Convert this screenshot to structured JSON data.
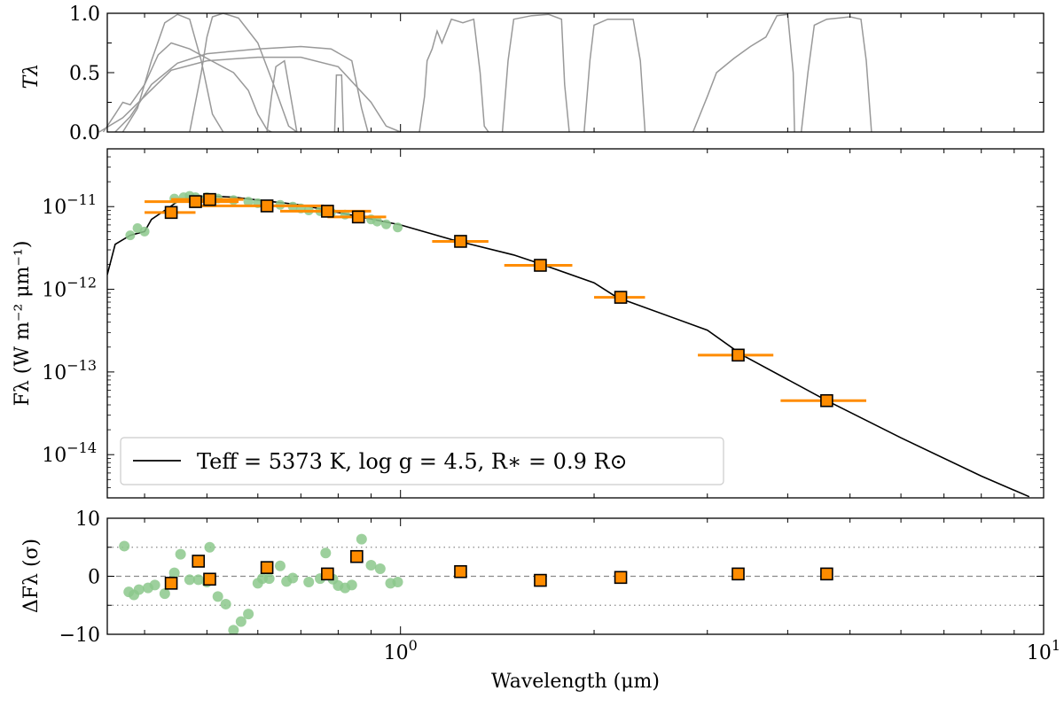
{
  "chart_data": [
    {
      "type": "line",
      "panel": "transmission",
      "ylabel": "Tλ",
      "ylim": [
        0,
        1.0
      ],
      "xscale": "log",
      "xlim": [
        0.35,
        10
      ],
      "yticks": [
        {
          "v": 0.0,
          "label": "0.0"
        },
        {
          "v": 0.5,
          "label": "0.5"
        },
        {
          "v": 1.0,
          "label": "1.0"
        }
      ],
      "color": "#999999",
      "series": [
        {
          "name": "band-1",
          "points": [
            [
              0.345,
              0
            ],
            [
              0.36,
              0.15
            ],
            [
              0.37,
              0.25
            ],
            [
              0.38,
              0.23
            ],
            [
              0.4,
              0.4
            ],
            [
              0.42,
              0.65
            ],
            [
              0.44,
              0.75
            ],
            [
              0.47,
              0.7
            ],
            [
              0.5,
              0.62
            ],
            [
              0.55,
              0.5
            ],
            [
              0.58,
              0.35
            ],
            [
              0.6,
              0.15
            ],
            [
              0.62,
              0.02
            ],
            [
              0.63,
              0
            ]
          ]
        },
        {
          "name": "band-2",
          "points": [
            [
              0.37,
              0
            ],
            [
              0.39,
              0.2
            ],
            [
              0.41,
              0.6
            ],
            [
              0.43,
              0.92
            ],
            [
              0.45,
              0.99
            ],
            [
              0.47,
              0.95
            ],
            [
              0.49,
              0.6
            ],
            [
              0.51,
              0.15
            ],
            [
              0.53,
              0
            ]
          ]
        },
        {
          "name": "band-3",
          "points": [
            [
              0.34,
              0
            ],
            [
              0.37,
              0.12
            ],
            [
              0.4,
              0.3
            ],
            [
              0.44,
              0.52
            ],
            [
              0.5,
              0.6
            ],
            [
              0.6,
              0.63
            ],
            [
              0.7,
              0.63
            ],
            [
              0.8,
              0.55
            ],
            [
              0.9,
              0.25
            ],
            [
              0.95,
              0.05
            ],
            [
              1.0,
              0
            ]
          ]
        },
        {
          "name": "band-4",
          "points": [
            [
              0.36,
              0
            ],
            [
              0.38,
              0.13
            ],
            [
              0.41,
              0.4
            ],
            [
              0.45,
              0.58
            ],
            [
              0.5,
              0.66
            ],
            [
              0.6,
              0.7
            ],
            [
              0.7,
              0.72
            ],
            [
              0.78,
              0.7
            ],
            [
              0.84,
              0.6
            ],
            [
              0.87,
              0.2
            ],
            [
              0.89,
              0
            ]
          ]
        },
        {
          "name": "band-5",
          "points": [
            [
              0.47,
              0
            ],
            [
              0.49,
              0.5
            ],
            [
              0.5,
              0.8
            ],
            [
              0.51,
              0.97
            ],
            [
              0.53,
              1.0
            ],
            [
              0.56,
              0.96
            ],
            [
              0.6,
              0.75
            ],
            [
              0.64,
              0.35
            ],
            [
              0.67,
              0.05
            ],
            [
              0.69,
              0
            ]
          ]
        },
        {
          "name": "band-6",
          "points": [
            [
              0.62,
              0
            ],
            [
              0.63,
              0.3
            ],
            [
              0.64,
              0.55
            ],
            [
              0.66,
              0.6
            ],
            [
              0.68,
              0.2
            ],
            [
              0.69,
              0
            ]
          ]
        },
        {
          "name": "band-7",
          "points": [
            [
              0.79,
              0
            ],
            [
              0.795,
              0.48
            ],
            [
              0.81,
              0.48
            ],
            [
              0.815,
              0
            ]
          ]
        },
        {
          "name": "band-8",
          "points": [
            [
              1.07,
              0
            ],
            [
              1.09,
              0.3
            ],
            [
              1.1,
              0.6
            ],
            [
              1.12,
              0.7
            ],
            [
              1.14,
              0.85
            ],
            [
              1.16,
              0.75
            ],
            [
              1.2,
              0.95
            ],
            [
              1.25,
              0.92
            ],
            [
              1.3,
              0.95
            ],
            [
              1.33,
              0.5
            ],
            [
              1.35,
              0.05
            ],
            [
              1.37,
              0
            ]
          ]
        },
        {
          "name": "band-9",
          "points": [
            [
              1.44,
              0
            ],
            [
              1.47,
              0.6
            ],
            [
              1.5,
              0.95
            ],
            [
              1.6,
              0.98
            ],
            [
              1.7,
              0.99
            ],
            [
              1.78,
              0.95
            ],
            [
              1.8,
              0.4
            ],
            [
              1.83,
              0
            ]
          ]
        },
        {
          "name": "band-10",
          "points": [
            [
              1.93,
              0
            ],
            [
              1.97,
              0.6
            ],
            [
              2.0,
              0.9
            ],
            [
              2.1,
              0.95
            ],
            [
              2.3,
              0.95
            ],
            [
              2.36,
              0.6
            ],
            [
              2.4,
              0
            ]
          ]
        },
        {
          "name": "band-11",
          "points": [
            [
              2.85,
              0
            ],
            [
              3.0,
              0.3
            ],
            [
              3.1,
              0.5
            ],
            [
              3.3,
              0.62
            ],
            [
              3.5,
              0.72
            ],
            [
              3.7,
              0.8
            ],
            [
              3.85,
              0.98
            ],
            [
              4.0,
              0.99
            ],
            [
              4.08,
              0.5
            ],
            [
              4.1,
              0
            ]
          ]
        },
        {
          "name": "band-12",
          "points": [
            [
              4.2,
              0
            ],
            [
              4.3,
              0.5
            ],
            [
              4.4,
              0.9
            ],
            [
              4.6,
              0.95
            ],
            [
              5.0,
              0.97
            ],
            [
              5.2,
              0.95
            ],
            [
              5.3,
              0.6
            ],
            [
              5.4,
              0
            ]
          ]
        }
      ]
    },
    {
      "type": "scatter",
      "panel": "sed",
      "ylabel": "Fλ (W m⁻² μm⁻¹)",
      "xscale": "log",
      "yscale": "log",
      "xlim": [
        0.35,
        10
      ],
      "ylim": [
        3e-15,
        5e-11
      ],
      "yticks": [
        {
          "v": 1e-11,
          "label": "10−11"
        },
        {
          "v": 1e-12,
          "label": "10−12"
        },
        {
          "v": 1e-13,
          "label": "10−13"
        },
        {
          "v": 1e-14,
          "label": "10−14"
        }
      ],
      "legend": {
        "text": "Teff = 5373 K, log g = 4.5, R∗ = 0.9 R⊙",
        "loc": "lower-left"
      },
      "model": {
        "name": "Teff = 5373 K, log g = 4.5, R∗ = 0.9 R⊙",
        "color": "#000000",
        "points": [
          [
            0.35,
            1.5e-12
          ],
          [
            0.36,
            3.5e-12
          ],
          [
            0.38,
            4.5e-12
          ],
          [
            0.4,
            5e-12
          ],
          [
            0.41,
            7e-12
          ],
          [
            0.43,
            9e-12
          ],
          [
            0.45,
            1.15e-11
          ],
          [
            0.5,
            1.35e-11
          ],
          [
            0.55,
            1.3e-11
          ],
          [
            0.6,
            1.2e-11
          ],
          [
            0.7,
            1.05e-11
          ],
          [
            0.8,
            8.5e-12
          ],
          [
            1.0,
            6e-12
          ],
          [
            1.2,
            4e-12
          ],
          [
            1.5,
            2.6e-12
          ],
          [
            1.63,
            2.1e-12
          ],
          [
            2.0,
            1.2e-12
          ],
          [
            2.17,
            8e-13
          ],
          [
            3.0,
            3.2e-13
          ],
          [
            3.4,
            1.6e-13
          ],
          [
            4.6,
            4.5e-14
          ],
          [
            6.0,
            1.6e-14
          ],
          [
            8.0,
            5.5e-15
          ],
          [
            9.5,
            3.1e-15
          ]
        ]
      },
      "spectrum_points": {
        "color": "#8cc88c",
        "points": [
          [
            0.38,
            4.5e-12
          ],
          [
            0.39,
            5.5e-12
          ],
          [
            0.4,
            5e-12
          ],
          [
            0.445,
            1.25e-11
          ],
          [
            0.46,
            1.3e-11
          ],
          [
            0.47,
            1.35e-11
          ],
          [
            0.48,
            1.3e-11
          ],
          [
            0.5,
            1.3e-11
          ],
          [
            0.52,
            1.25e-11
          ],
          [
            0.55,
            1.2e-11
          ],
          [
            0.58,
            1.15e-11
          ],
          [
            0.6,
            1.1e-11
          ],
          [
            0.62,
            1.05e-11
          ],
          [
            0.65,
            1.05e-11
          ],
          [
            0.68,
            1e-11
          ],
          [
            0.7,
            9.5e-12
          ],
          [
            0.72,
            9e-12
          ],
          [
            0.75,
            8.8e-12
          ],
          [
            0.78,
            8.5e-12
          ],
          [
            0.82,
            8e-12
          ],
          [
            0.86,
            7.4e-12
          ],
          [
            0.9,
            7e-12
          ],
          [
            0.92,
            6.6e-12
          ],
          [
            0.95,
            6.1e-12
          ],
          [
            0.99,
            5.6e-12
          ]
        ]
      },
      "photometry": {
        "color": "#ff8c00",
        "points": [
          {
            "x": 0.44,
            "y": 8.5e-12,
            "xerr": [
              0.4,
              0.48
            ]
          },
          {
            "x": 0.48,
            "y": 1.15e-11,
            "xerr": [
              0.4,
              0.56
            ]
          },
          {
            "x": 0.505,
            "y": 1.22e-11,
            "xerr": [
              0.44,
              0.57
            ]
          },
          {
            "x": 0.62,
            "y": 1.02e-11,
            "xerr": [
              0.48,
              0.76
            ]
          },
          {
            "x": 0.77,
            "y": 8.8e-12,
            "xerr": [
              0.65,
              0.9
            ]
          },
          {
            "x": 0.86,
            "y": 7.5e-12,
            "xerr": [
              0.77,
              0.95
            ]
          },
          {
            "x": 1.24,
            "y": 3.8e-12,
            "xerr": [
              1.12,
              1.37
            ]
          },
          {
            "x": 1.65,
            "y": 1.95e-12,
            "xerr": [
              1.45,
              1.85
            ]
          },
          {
            "x": 2.2,
            "y": 8e-13,
            "xerr": [
              2.0,
              2.4
            ]
          },
          {
            "x": 3.35,
            "y": 1.6e-13,
            "xerr": [
              2.9,
              3.8
            ]
          },
          {
            "x": 4.6,
            "y": 4.5e-14,
            "xerr": [
              3.9,
              5.3
            ]
          }
        ]
      }
    },
    {
      "type": "scatter",
      "panel": "residuals",
      "ylabel": "ΔFλ (σ)",
      "xlabel": "Wavelength (μm)",
      "xscale": "log",
      "xlim": [
        0.35,
        10
      ],
      "ylim": [
        -10,
        10
      ],
      "yticks": [
        {
          "v": 10,
          "label": "10"
        },
        {
          "v": 0,
          "label": "0"
        },
        {
          "v": -10,
          "label": "−10"
        }
      ],
      "xticks": [
        {
          "v": 1,
          "base": "10",
          "exp": "0"
        },
        {
          "v": 10,
          "base": "10",
          "exp": "1"
        }
      ],
      "reference_lines": [
        {
          "y": 0,
          "style": "dashed"
        },
        {
          "y": 5,
          "style": "dotted"
        },
        {
          "y": -5,
          "style": "dotted"
        }
      ],
      "spectrum_residuals": {
        "color": "#8cc88c",
        "points": [
          [
            0.372,
            5.2
          ],
          [
            0.378,
            -2.7
          ],
          [
            0.385,
            -3.2
          ],
          [
            0.392,
            -2.3
          ],
          [
            0.405,
            -2.0
          ],
          [
            0.415,
            -1.5
          ],
          [
            0.43,
            -3.0
          ],
          [
            0.445,
            0.6
          ],
          [
            0.455,
            3.8
          ],
          [
            0.47,
            -0.6
          ],
          [
            0.485,
            -0.6
          ],
          [
            0.5,
            -1.0
          ],
          [
            0.505,
            5.0
          ],
          [
            0.52,
            -3.5
          ],
          [
            0.535,
            -4.8
          ],
          [
            0.55,
            -9.3
          ],
          [
            0.565,
            -7.8
          ],
          [
            0.58,
            -6.5
          ],
          [
            0.6,
            -1.2
          ],
          [
            0.61,
            -0.4
          ],
          [
            0.625,
            -0.4
          ],
          [
            0.65,
            1.8
          ],
          [
            0.665,
            -0.9
          ],
          [
            0.68,
            -0.3
          ],
          [
            0.72,
            -1.0
          ],
          [
            0.75,
            -0.4
          ],
          [
            0.765,
            4.0
          ],
          [
            0.785,
            -0.5
          ],
          [
            0.8,
            -1.6
          ],
          [
            0.82,
            -2.0
          ],
          [
            0.84,
            -1.5
          ],
          [
            0.87,
            6.4
          ],
          [
            0.9,
            1.9
          ],
          [
            0.93,
            1.3
          ],
          [
            0.965,
            -1.2
          ],
          [
            0.99,
            -1.0
          ]
        ]
      },
      "photometry_residuals": {
        "color": "#ff8c00",
        "points": [
          [
            0.44,
            -1.2
          ],
          [
            0.485,
            2.6
          ],
          [
            0.505,
            -0.5
          ],
          [
            0.62,
            1.5
          ],
          [
            0.77,
            0.4
          ],
          [
            0.855,
            3.4
          ],
          [
            1.24,
            0.8
          ],
          [
            1.65,
            -0.7
          ],
          [
            2.2,
            -0.2
          ],
          [
            3.35,
            0.4
          ],
          [
            4.6,
            0.4
          ]
        ]
      }
    }
  ]
}
